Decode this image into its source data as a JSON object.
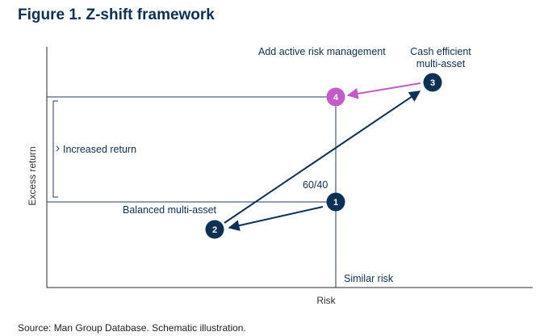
{
  "figure": {
    "title": "Figure 1. Z-shift framework",
    "source": "Source: Man Group Database. Schematic illustration."
  },
  "axes": {
    "x_label": "Risk",
    "y_label": "Excess return"
  },
  "labels": {
    "add_active": "Add active risk management",
    "cash_efficient_line1": "Cash efficient",
    "cash_efficient_line2": "multi-asset",
    "increased_return": "Increased return",
    "sixty_forty": "60/40",
    "balanced": "Balanced multi-asset",
    "similar_risk": "Similar risk"
  },
  "nodes": [
    {
      "label": "1"
    },
    {
      "label": "2"
    },
    {
      "label": "3"
    },
    {
      "label": "4"
    }
  ],
  "colors": {
    "navy": "#0d3055",
    "magenta": "#c25bc8",
    "line": "#1c3f66"
  }
}
